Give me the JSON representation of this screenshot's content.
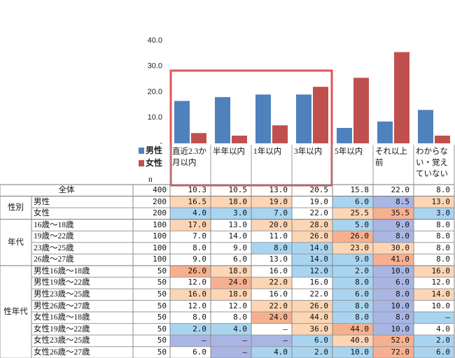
{
  "chart_data": {
    "type": "bar",
    "categories": [
      "直近2.3か月以内",
      "半年以内",
      "1年以内",
      "3年以内",
      "5年以内",
      "それ以上前",
      "わからない・覚えていない"
    ],
    "series": [
      {
        "name": "男性",
        "color": "#4f81bd",
        "values": [
          16.5,
          18.0,
          19.0,
          19.0,
          6.0,
          8.5,
          13.0
        ]
      },
      {
        "name": "女性",
        "color": "#c0504d",
        "values": [
          4.0,
          3.0,
          7.0,
          22.0,
          25.5,
          35.5,
          3.0
        ]
      }
    ],
    "ylim": [
      0,
      40
    ],
    "yticks": [
      {
        "value": 0,
        "label": "-"
      },
      {
        "value": 10,
        "label": "10.0"
      },
      {
        "value": 20,
        "label": "20.0"
      },
      {
        "value": 30,
        "label": "30.0"
      },
      {
        "value": 40,
        "label": "40.0"
      }
    ],
    "grid": false
  },
  "table": {
    "n_label": "n",
    "total": {
      "label": "全体",
      "n": "400",
      "values": [
        "10.3",
        "10.5",
        "13.0",
        "20.5",
        "15.8",
        "22.0",
        "8.0"
      ]
    },
    "groups": [
      {
        "label": "性別",
        "rows": [
          {
            "label": "男性",
            "n": "200",
            "values": [
              "16.5",
              "18.0",
              "19.0",
              "19.0",
              "6.0",
              "8.5",
              "13.0"
            ],
            "fills": [
              "#fcd5b4",
              "#fcd5b4",
              "#fcd5b4",
              "#ffffff",
              "#a8d4f0",
              "#a9b6e4",
              "#fcd5b4"
            ]
          },
          {
            "label": "女性",
            "n": "200",
            "values": [
              "4.0",
              "3.0",
              "7.0",
              "22.0",
              "25.5",
              "35.5",
              "3.0"
            ],
            "fills": [
              "#a8d4f0",
              "#a8d4f0",
              "#a8d4f0",
              "#ffffff",
              "#fcd5b4",
              "#f7b08f",
              "#a8d4f0"
            ]
          }
        ]
      },
      {
        "label": "年代",
        "rows": [
          {
            "label": "16歳～18歳",
            "n": "100",
            "values": [
              "17.0",
              "13.0",
              "20.0",
              "28.0",
              "5.0",
              "9.0",
              "8.0"
            ],
            "fills": [
              "#fcd5b4",
              "#ffffff",
              "#fcd5b4",
              "#fcd5b4",
              "#a8d4f0",
              "#a9b6e4",
              "#ffffff"
            ]
          },
          {
            "label": "19歳～22歳",
            "n": "100",
            "values": [
              "7.0",
              "14.0",
              "11.0",
              "26.0",
              "26.0",
              "8.0",
              "8.0"
            ],
            "fills": [
              "#ffffff",
              "#ffffff",
              "#ffffff",
              "#fcd5b4",
              "#f7b08f",
              "#a9b6e4",
              "#ffffff"
            ]
          },
          {
            "label": "23歳～25歳",
            "n": "100",
            "values": [
              "8.0",
              "9.0",
              "8.0",
              "14.0",
              "23.0",
              "30.0",
              "8.0"
            ],
            "fills": [
              "#ffffff",
              "#ffffff",
              "#a8d4f0",
              "#a8d4f0",
              "#fcd5b4",
              "#fcd5b4",
              "#ffffff"
            ]
          },
          {
            "label": "26歳～27歳",
            "n": "100",
            "values": [
              "9.0",
              "6.0",
              "13.0",
              "14.0",
              "9.0",
              "41.0",
              "8.0"
            ],
            "fills": [
              "#ffffff",
              "#ffffff",
              "#ffffff",
              "#a8d4f0",
              "#a8d4f0",
              "#f7b08f",
              "#ffffff"
            ]
          }
        ]
      },
      {
        "label": "性年代",
        "rows": [
          {
            "label": "男性16歳～18歳",
            "n": "50",
            "values": [
              "26.0",
              "18.0",
              "16.0",
              "12.0",
              "2.0",
              "10.0",
              "16.0"
            ],
            "fills": [
              "#f7b08f",
              "#fcd5b4",
              "#ffffff",
              "#a8d4f0",
              "#a8d4f0",
              "#a9b6e4",
              "#fcd5b4"
            ]
          },
          {
            "label": "男性19歳～22歳",
            "n": "50",
            "values": [
              "12.0",
              "24.0",
              "22.0",
              "16.0",
              "8.0",
              "6.0",
              "12.0"
            ],
            "fills": [
              "#ffffff",
              "#f7b08f",
              "#fcd5b4",
              "#ffffff",
              "#a8d4f0",
              "#a9b6e4",
              "#ffffff"
            ]
          },
          {
            "label": "男性23歳～25歳",
            "n": "50",
            "values": [
              "16.0",
              "18.0",
              "16.0",
              "22.0",
              "6.0",
              "8.0",
              "14.0"
            ],
            "fills": [
              "#fcd5b4",
              "#fcd5b4",
              "#ffffff",
              "#ffffff",
              "#a8d4f0",
              "#a9b6e4",
              "#fcd5b4"
            ]
          },
          {
            "label": "男性26歳～27歳",
            "n": "50",
            "values": [
              "12.0",
              "12.0",
              "22.0",
              "26.0",
              "8.0",
              "10.0",
              "10.0"
            ],
            "fills": [
              "#ffffff",
              "#ffffff",
              "#fcd5b4",
              "#fcd5b4",
              "#a8d4f0",
              "#a9b6e4",
              "#ffffff"
            ]
          },
          {
            "label": "女性16歳～18歳",
            "n": "50",
            "values": [
              "8.0",
              "8.0",
              "24.0",
              "44.0",
              "8.0",
              "8.0",
              "–"
            ],
            "fills": [
              "#ffffff",
              "#ffffff",
              "#f7b08f",
              "#fcd5b4",
              "#a8d4f0",
              "#a9b6e4",
              "#a8d4f0"
            ]
          },
          {
            "label": "女性19歳～22歳",
            "n": "50",
            "values": [
              "2.0",
              "4.0",
              "–",
              "36.0",
              "44.0",
              "10.0",
              "4.0"
            ],
            "fills": [
              "#a8d4f0",
              "#a8d4f0",
              "#ffffff",
              "#fcd5b4",
              "#f7b08f",
              "#a9b6e4",
              "#ffffff"
            ]
          },
          {
            "label": "女性23歳～25歳",
            "n": "50",
            "values": [
              "–",
              "–",
              "–",
              "6.0",
              "40.0",
              "52.0",
              "2.0"
            ],
            "fills": [
              "#a9b6e4",
              "#a9b6e4",
              "#a9b6e4",
              "#a8d4f0",
              "#fcd5b4",
              "#f7b08f",
              "#a8d4f0"
            ]
          },
          {
            "label": "女性26歳～27歳",
            "n": "50",
            "values": [
              "6.0",
              "–",
              "4.0",
              "2.0",
              "10.0",
              "72.0",
              "6.0"
            ],
            "fills": [
              "#ffffff",
              "#a9b6e4",
              "#a8d4f0",
              "#a8d4f0",
              "#a8d4f0",
              "#f7b08f",
              "#a8d4f0"
            ]
          }
        ]
      }
    ]
  }
}
